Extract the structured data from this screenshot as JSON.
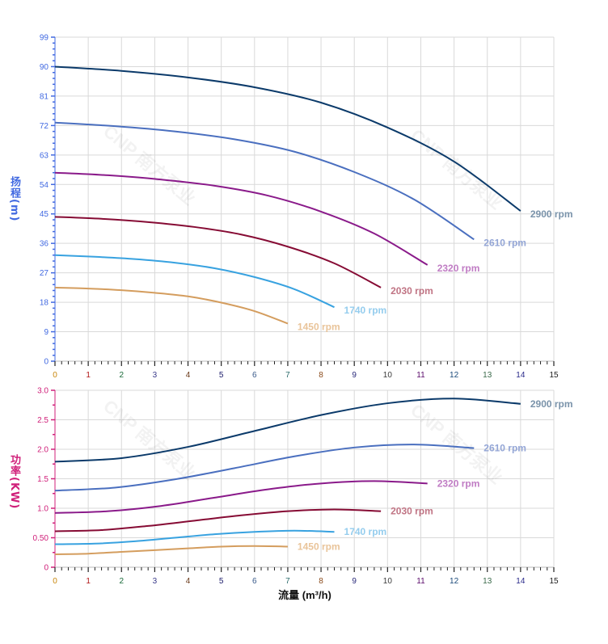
{
  "chart_data": [
    {
      "type": "line",
      "ylabel": "扬程(m)",
      "xlabel": "",
      "xlim": [
        0,
        15
      ],
      "ylim": [
        0,
        99
      ],
      "x_ticks": [
        "0",
        "1",
        "2",
        "3",
        "4",
        "5",
        "6",
        "7",
        "8",
        "9",
        "10",
        "11",
        "12",
        "13",
        "14",
        "15"
      ],
      "y_ticks": [
        "0",
        "9",
        "18",
        "27",
        "36",
        "45",
        "54",
        "63",
        "72",
        "81",
        "90",
        "99"
      ],
      "grid": true,
      "axis_color": "#4169e1",
      "series": [
        {
          "name": "2900 rpm",
          "color": "#0b3a6a",
          "label_color": "#7a93aa",
          "x": [
            0,
            2,
            4,
            6,
            8,
            10,
            12,
            14
          ],
          "y": [
            90,
            88.7,
            86.7,
            83.7,
            79,
            71.4,
            61,
            45.9
          ]
        },
        {
          "name": "2610 rpm",
          "color": "#4a6fbf",
          "label_color": "#94a6d6",
          "x": [
            0,
            1.8,
            3.6,
            5.4,
            7.2,
            9,
            10.8,
            12.6
          ],
          "y": [
            72.9,
            71.8,
            70.2,
            67.8,
            64,
            57.8,
            49.4,
            37.2
          ]
        },
        {
          "name": "2320 rpm",
          "color": "#8a1a8a",
          "label_color": "#c07cc4",
          "x": [
            0,
            1.6,
            3.2,
            4.8,
            6.4,
            8,
            9.6,
            11.2
          ],
          "y": [
            57.6,
            56.8,
            55.5,
            53.6,
            50.6,
            45.7,
            39,
            29.4
          ]
        },
        {
          "name": "2030 rpm",
          "color": "#860b34",
          "label_color": "#c07484",
          "x": [
            0,
            1.4,
            2.8,
            4.2,
            5.6,
            7,
            8.4,
            9.8
          ],
          "y": [
            44.1,
            43.5,
            42.5,
            41,
            38.7,
            35,
            29.9,
            22.5
          ]
        },
        {
          "name": "1740 rpm",
          "color": "#38a2e0",
          "label_color": "#95cdee",
          "x": [
            0,
            1.2,
            2.4,
            3.6,
            4.8,
            6,
            7.2,
            8.4
          ],
          "y": [
            32.4,
            31.9,
            31.2,
            30.1,
            28.4,
            25.7,
            22,
            16.5
          ]
        },
        {
          "name": "1450 rpm",
          "color": "#d49d5e",
          "label_color": "#e9c49a",
          "x": [
            0,
            1,
            2,
            3,
            4,
            5,
            6,
            7
          ],
          "y": [
            22.5,
            22.2,
            21.7,
            20.9,
            19.8,
            17.9,
            15.3,
            11.5
          ]
        }
      ]
    },
    {
      "type": "line",
      "ylabel": "功率(KW)",
      "xlabel": "流量 (m³/h)",
      "xlim": [
        0,
        15
      ],
      "ylim": [
        0,
        3.0
      ],
      "x_ticks": [
        "0",
        "1",
        "2",
        "3",
        "4",
        "5",
        "6",
        "7",
        "8",
        "9",
        "10",
        "11",
        "12",
        "13",
        "14",
        "15"
      ],
      "y_ticks": [
        "0",
        "0.50",
        "1.0",
        "1.5",
        "2.0",
        "2.5",
        "3.0"
      ],
      "grid": true,
      "axis_color": "#d0207a",
      "series": [
        {
          "name": "2900 rpm",
          "color": "#0b3a6a",
          "label_color": "#7a93aa",
          "x": [
            0,
            2,
            4,
            6,
            8,
            10,
            12,
            14
          ],
          "y": [
            1.79,
            1.85,
            2.04,
            2.31,
            2.58,
            2.78,
            2.86,
            2.77
          ]
        },
        {
          "name": "2610 rpm",
          "color": "#4a6fbf",
          "label_color": "#94a6d6",
          "x": [
            0,
            1.8,
            3.6,
            5.4,
            7.2,
            9,
            10.8,
            12.6
          ],
          "y": [
            1.3,
            1.35,
            1.49,
            1.68,
            1.88,
            2.03,
            2.08,
            2.02
          ]
        },
        {
          "name": "2320 rpm",
          "color": "#8a1a8a",
          "label_color": "#c07cc4",
          "x": [
            0,
            1.6,
            3.2,
            4.8,
            6.4,
            8,
            9.6,
            11.2
          ],
          "y": [
            0.92,
            0.95,
            1.04,
            1.18,
            1.32,
            1.42,
            1.46,
            1.42
          ]
        },
        {
          "name": "2030 rpm",
          "color": "#860b34",
          "label_color": "#c07484",
          "x": [
            0,
            1.4,
            2.8,
            4.2,
            5.6,
            7,
            8.4,
            9.8
          ],
          "y": [
            0.61,
            0.63,
            0.7,
            0.79,
            0.88,
            0.95,
            0.98,
            0.95
          ]
        },
        {
          "name": "1740 rpm",
          "color": "#38a2e0",
          "label_color": "#95cdee",
          "x": [
            0,
            1.2,
            2.4,
            3.6,
            4.8,
            6,
            7.2,
            8.4
          ],
          "y": [
            0.39,
            0.4,
            0.44,
            0.5,
            0.56,
            0.6,
            0.62,
            0.6
          ]
        },
        {
          "name": "1450 rpm",
          "color": "#d49d5e",
          "label_color": "#e9c49a",
          "x": [
            0,
            1,
            2,
            3,
            4,
            5,
            6,
            7
          ],
          "y": [
            0.22,
            0.23,
            0.26,
            0.29,
            0.32,
            0.35,
            0.36,
            0.35
          ]
        }
      ]
    }
  ],
  "watermark": "CNP 南方泵业"
}
